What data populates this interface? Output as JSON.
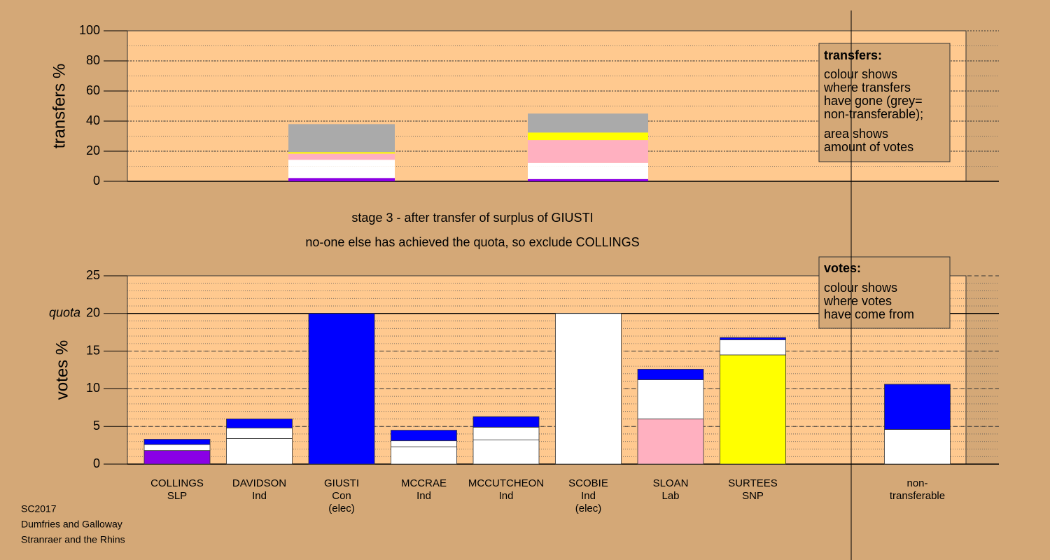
{
  "chart_data": [
    {
      "type": "stacked-bar",
      "ylabel": "transfers %",
      "ylim": [
        0,
        100
      ],
      "yticks": [
        0,
        20,
        40,
        60,
        80,
        100
      ],
      "minor_grid_step": 10,
      "bars": [
        [
          {
            "color": "#8a00e6",
            "value": 2.2
          },
          {
            "color": "#ffffff",
            "value": 7.9
          },
          {
            "color": "#ffffff",
            "value": 4.2
          },
          {
            "color": "#ffb0c0",
            "value": 4.1
          },
          {
            "color": "#ffff00",
            "value": 1
          },
          {
            "color": "#aaaaaa",
            "value": 18.6
          }
        ],
        [
          {
            "color": "#8a00e6",
            "value": 1.5
          },
          {
            "color": "#ffffff",
            "value": 8.7
          },
          {
            "color": "#ffffff",
            "value": 2
          },
          {
            "color": "#ffb0c0",
            "value": 15.2
          },
          {
            "color": "#ffff00",
            "value": 5
          },
          {
            "color": "#aaaaaa",
            "value": 12.6
          }
        ]
      ],
      "legend": {
        "title": "transfers:",
        "paragraphs": [
          [
            "colour shows",
            "where transfers",
            "have gone (grey=",
            "non-transferable);"
          ],
          [
            "area shows",
            "amount of votes"
          ]
        ]
      }
    },
    {
      "type": "stacked-bar",
      "ylabel": "votes %",
      "ylim": [
        0,
        25
      ],
      "yticks": [
        0,
        5,
        10,
        15,
        20,
        25
      ],
      "minor_grid_step": 1,
      "quota": {
        "value": 20,
        "label": "quota"
      },
      "categories": [
        [
          "COLLINGS",
          "SLP"
        ],
        [
          "DAVIDSON",
          "Ind"
        ],
        [
          "GIUSTI",
          "Con",
          "(elec)"
        ],
        [
          "MCCRAE",
          "Ind"
        ],
        [
          "MCCUTCHEON",
          "Ind"
        ],
        [
          "SCOBIE",
          "Ind",
          "(elec)"
        ],
        [
          "SLOAN",
          "Lab"
        ],
        [
          "SURTEES",
          "SNP"
        ],
        null,
        [
          "non-",
          "transferable"
        ]
      ],
      "bars": [
        [
          {
            "color": "#8a00e6",
            "value": 1.8
          },
          {
            "color": "#ffffff",
            "value": 0.8
          },
          {
            "color": "#0000ff",
            "value": 0.7
          }
        ],
        [
          {
            "color": "#ffffff",
            "value": 3.4
          },
          {
            "color": "#ffffff",
            "value": 1.4
          },
          {
            "color": "#0000ff",
            "value": 1.2
          }
        ],
        [
          {
            "color": "#0000ff",
            "value": 20
          }
        ],
        [
          {
            "color": "#ffffff",
            "value": 2.3
          },
          {
            "color": "#ffffff",
            "value": 0.8
          },
          {
            "color": "#0000ff",
            "value": 1.4
          }
        ],
        [
          {
            "color": "#ffffff",
            "value": 3.2
          },
          {
            "color": "#ffffff",
            "value": 1.7
          },
          {
            "color": "#0000ff",
            "value": 1.4
          }
        ],
        [
          {
            "color": "#ffffff",
            "value": 20
          }
        ],
        [
          {
            "color": "#ffb0c0",
            "value": 6
          },
          {
            "color": "#ffffff",
            "value": 5.2
          },
          {
            "color": "#0000ff",
            "value": 1.4
          }
        ],
        [
          {
            "color": "#ffff00",
            "value": 14.5
          },
          {
            "color": "#ffffff",
            "value": 2
          },
          {
            "color": "#0000ff",
            "value": 0.3
          }
        ],
        null,
        [
          {
            "color": "#ffffff",
            "value": 4.6
          },
          {
            "color": "#0000ff",
            "value": 6
          }
        ]
      ],
      "legend": {
        "title": "votes:",
        "paragraphs": [
          [
            "colour shows",
            "where votes",
            "have come from"
          ]
        ]
      }
    }
  ],
  "captions": [
    "stage 3 - after transfer of surplus of GIUSTI",
    "no-one else has achieved the quota, so exclude COLLINGS"
  ],
  "footer": [
    "SC2017",
    "Dumfries and Galloway",
    "Stranraer and the Rhins"
  ]
}
